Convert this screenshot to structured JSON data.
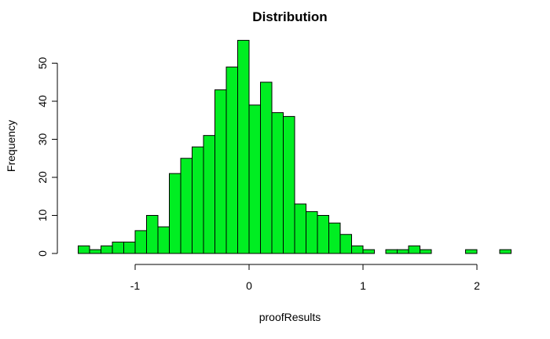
{
  "chart_data": {
    "type": "bar",
    "title": "Distribution",
    "xlabel": "proofResults",
    "ylabel": "Frequency",
    "bin_width": 0.1,
    "bins_start": -1.5,
    "values": [
      2,
      1,
      2,
      3,
      3,
      6,
      10,
      7,
      21,
      25,
      28,
      31,
      43,
      49,
      56,
      39,
      45,
      37,
      36,
      13,
      11,
      10,
      8,
      5,
      2,
      1,
      0,
      1,
      1,
      2,
      1,
      0,
      0,
      0,
      1,
      0,
      0,
      1
    ],
    "xlim": [
      -1.5,
      2.2
    ],
    "ylim": [
      0,
      56
    ],
    "x_ticks": [
      {
        "value": -1,
        "label": "-1"
      },
      {
        "value": 0,
        "label": "0"
      },
      {
        "value": 1,
        "label": "1"
      },
      {
        "value": 2,
        "label": "2"
      }
    ],
    "y_ticks": [
      {
        "value": 0,
        "label": "0"
      },
      {
        "value": 10,
        "label": "10"
      },
      {
        "value": 20,
        "label": "20"
      },
      {
        "value": 30,
        "label": "30"
      },
      {
        "value": 40,
        "label": "40"
      },
      {
        "value": 50,
        "label": "50"
      }
    ],
    "bar_color": "#00ee22",
    "grid": false
  }
}
